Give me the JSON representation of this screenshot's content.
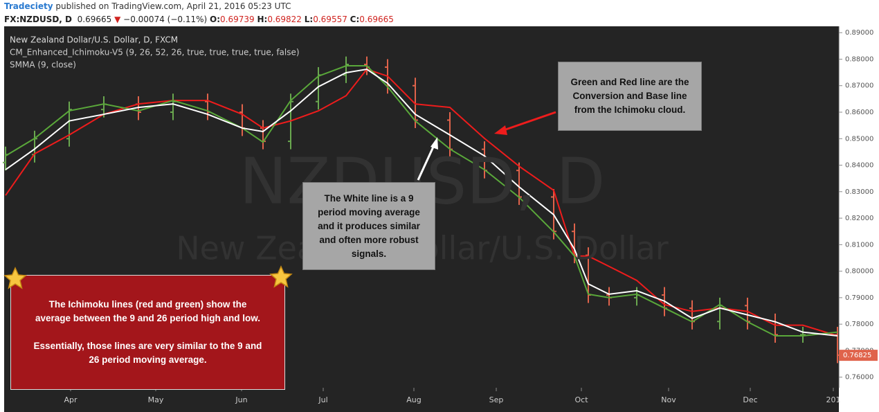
{
  "header": {
    "author": "Tradeciety",
    "published": "published on TradingView.com, April 21, 2016 05:23 UTC",
    "symbol": "FX:NZDUSD, D",
    "last": "0.69665",
    "direction": "▼",
    "change": "−0.00074 (−0.11%)",
    "open_label": "O:",
    "open": "0.69739",
    "high_label": "H:",
    "high": "0.69822",
    "low_label": "L:",
    "low": "0.69557",
    "close_label": "C:",
    "close": "0.69665"
  },
  "chart_data": {
    "type": "ohlc",
    "legend": [
      "New Zealand Dollar/U.S. Dollar, D, FXCM",
      "CM_Enhanced_Ichimoku-V5 (9, 26, 52, 26, true, true, true, true, false)",
      "SMMA (9, close)"
    ],
    "watermark": [
      "NZDUSD, D",
      "New Zealand Dollar/U.S. Dollar"
    ],
    "x": [
      0,
      10.5,
      23,
      35.5,
      48,
      60.5,
      73,
      85.5,
      93,
      103,
      113,
      123,
      130.5,
      138,
      148,
      160.5,
      173,
      185.5,
      198,
      205.5,
      210.5,
      218,
      228,
      238,
      248,
      258,
      268,
      278,
      288,
      300.5
    ],
    "xlim": [
      0,
      300.5
    ],
    "xticks": [
      {
        "value": 23.5,
        "label": "Apr"
      },
      {
        "value": 54.25,
        "label": "May"
      },
      {
        "value": 85.25,
        "label": "Jun"
      },
      {
        "value": 114.75,
        "label": "Jul"
      },
      {
        "value": 147.5,
        "label": "Aug"
      },
      {
        "value": 177.25,
        "label": "Sep"
      },
      {
        "value": 208,
        "label": "Oct"
      },
      {
        "value": 239.5,
        "label": "Nov"
      },
      {
        "value": 269,
        "label": "Dec"
      },
      {
        "value": 299,
        "label": "201"
      }
    ],
    "ylim": [
      0.756,
      0.8924
    ],
    "yticks": [
      {
        "value": 0.89,
        "label": "0.89000"
      },
      {
        "value": 0.88,
        "label": "0.88000"
      },
      {
        "value": 0.87,
        "label": "0.87000"
      },
      {
        "value": 0.86,
        "label": "0.86000"
      },
      {
        "value": 0.85,
        "label": "0.85000"
      },
      {
        "value": 0.84,
        "label": "0.84000"
      },
      {
        "value": 0.83,
        "label": "0.83000"
      },
      {
        "value": 0.82,
        "label": "0.82000"
      },
      {
        "value": 0.81,
        "label": "0.81000"
      },
      {
        "value": 0.8,
        "label": "0.80000"
      },
      {
        "value": 0.79,
        "label": "0.79000"
      },
      {
        "value": 0.78,
        "label": "0.78000"
      },
      {
        "value": 0.77,
        "label": "0.77000"
      },
      {
        "value": 0.76,
        "label": "0.76000"
      }
    ],
    "up_color": "#6aa84f",
    "down_color": "#e0634b",
    "open": [
      0.841,
      0.844,
      0.85,
      0.861,
      0.863,
      0.86,
      0.864,
      0.86,
      0.854,
      0.849,
      0.864,
      0.874,
      0.878,
      0.877,
      0.87,
      0.857,
      0.846,
      0.838,
      0.828,
      0.815,
      0.806,
      0.791,
      0.79,
      0.791,
      0.786,
      0.781,
      0.787,
      0.781,
      0.776,
      0.776
    ],
    "high": [
      0.847,
      0.853,
      0.864,
      0.866,
      0.866,
      0.867,
      0.867,
      0.863,
      0.857,
      0.867,
      0.877,
      0.881,
      0.881,
      0.88,
      0.873,
      0.86,
      0.849,
      0.841,
      0.831,
      0.818,
      0.809,
      0.794,
      0.794,
      0.794,
      0.789,
      0.79,
      0.79,
      0.784,
      0.779,
      0.779
    ],
    "low": [
      0.838,
      0.841,
      0.847,
      0.858,
      0.857,
      0.857,
      0.857,
      0.851,
      0.846,
      0.846,
      0.861,
      0.871,
      0.874,
      0.867,
      0.854,
      0.843,
      0.835,
      0.825,
      0.812,
      0.803,
      0.788,
      0.787,
      0.787,
      0.783,
      0.778,
      0.778,
      0.778,
      0.773,
      0.773,
      0.7653
    ],
    "close": [
      0.844,
      0.85,
      0.861,
      0.863,
      0.86,
      0.864,
      0.86,
      0.854,
      0.849,
      0.864,
      0.874,
      0.878,
      0.877,
      0.87,
      0.857,
      0.846,
      0.838,
      0.828,
      0.815,
      0.806,
      0.791,
      0.79,
      0.791,
      0.786,
      0.781,
      0.787,
      0.781,
      0.776,
      0.776,
      0.7683
    ],
    "series": [
      {
        "color": "#ee1c1c",
        "values": [
          0.8286,
          0.8443,
          0.8514,
          0.8592,
          0.8631,
          0.8644,
          0.8644,
          0.8592,
          0.854,
          0.8567,
          0.8605,
          0.8662,
          0.8762,
          0.8736,
          0.8631,
          0.8618,
          0.8501,
          0.8396,
          0.8305,
          0.8057,
          0.8057,
          0.8018,
          0.7965,
          0.7874,
          0.7848,
          0.7861,
          0.7848,
          0.7796,
          0.7796,
          0.7756
        ]
      },
      {
        "color": "#5aa83a",
        "values": [
          0.8435,
          0.8501,
          0.8605,
          0.8631,
          0.8605,
          0.8644,
          0.8605,
          0.854,
          0.8487,
          0.8644,
          0.8736,
          0.8775,
          0.8775,
          0.8696,
          0.8567,
          0.8461,
          0.8383,
          0.8279,
          0.8148,
          0.8057,
          0.7913,
          0.79,
          0.7913,
          0.7861,
          0.7809,
          0.7874,
          0.7809,
          0.7756,
          0.7756,
          0.777
        ]
      },
      {
        "color": "#ffffff",
        "values": [
          0.8383,
          0.8461,
          0.8567,
          0.8592,
          0.8618,
          0.8631,
          0.8592,
          0.854,
          0.8527,
          0.8605,
          0.8696,
          0.8749,
          0.8762,
          0.8709,
          0.8592,
          0.8514,
          0.8435,
          0.8318,
          0.8213,
          0.8083,
          0.7952,
          0.7913,
          0.7926,
          0.7887,
          0.7822,
          0.7861,
          0.7835,
          0.7809,
          0.777,
          0.7756
        ]
      }
    ],
    "last_price": {
      "value": 0.76825,
      "label": "0.76825"
    },
    "annotations": [
      {
        "paragraphs": [
          "Green and Red line are the Conversion and Base line from the Ichimoku cloud."
        ]
      },
      {
        "paragraphs": [
          "The White line is a 9 period moving average and it produces similar and often more robust signals."
        ]
      },
      {
        "paragraphs": [
          "The Ichimoku lines (red and green) show the average between the 9 and 26 period high and low.",
          "Essentially, those lines are very similar to the 9 and 26 period moving average."
        ]
      }
    ]
  }
}
